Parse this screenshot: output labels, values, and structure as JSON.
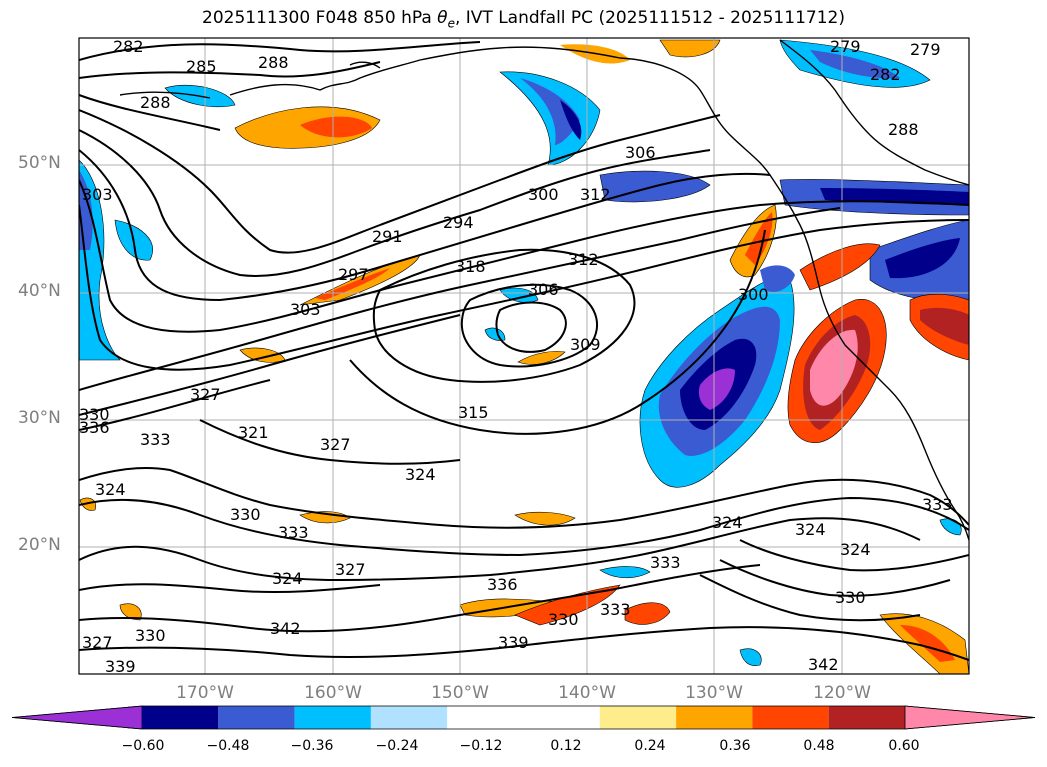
{
  "title": {
    "prefix": "2025111300 F048 850 hPa ",
    "symbol": "θ",
    "subscript": "e",
    "suffix": ", IVT Landfall PC (2025111512 - 2025111712)"
  },
  "lat_ticks": [
    "50°N",
    "40°N",
    "30°N",
    "20°N"
  ],
  "lon_ticks": [
    "170°W",
    "160°W",
    "150°W",
    "140°W",
    "130°W",
    "120°W"
  ],
  "colorbar": {
    "colors": [
      "#9b30d6",
      "#00008b",
      "#3a5bd2",
      "#00bfff",
      "#b0e2ff",
      "#ffffff",
      "#ffffff",
      "#ffec8b",
      "#ffa500",
      "#ff4500",
      "#b22222",
      "#ff88aa"
    ],
    "tick_labels": [
      "−0.60",
      "−0.48",
      "−0.36",
      "−0.24",
      "−0.12",
      "0.12",
      "0.24",
      "0.36",
      "0.48",
      "0.60"
    ]
  },
  "contour_labels": [
    {
      "text": "282"
    },
    {
      "text": "285"
    },
    {
      "text": "288"
    },
    {
      "text": "288"
    },
    {
      "text": "279"
    },
    {
      "text": "279"
    },
    {
      "text": "282"
    },
    {
      "text": "288"
    },
    {
      "text": "306"
    },
    {
      "text": "300"
    },
    {
      "text": "312"
    },
    {
      "text": "294"
    },
    {
      "text": "291"
    },
    {
      "text": "318"
    },
    {
      "text": "312"
    },
    {
      "text": "306"
    },
    {
      "text": "309"
    },
    {
      "text": "300"
    },
    {
      "text": "303"
    },
    {
      "text": "297"
    },
    {
      "text": "303"
    },
    {
      "text": "315"
    },
    {
      "text": "327"
    },
    {
      "text": "321"
    },
    {
      "text": "327"
    },
    {
      "text": "324"
    },
    {
      "text": "330"
    },
    {
      "text": "336"
    },
    {
      "text": "333"
    },
    {
      "text": "324"
    },
    {
      "text": "330"
    },
    {
      "text": "333"
    },
    {
      "text": "324"
    },
    {
      "text": "327"
    },
    {
      "text": "336"
    },
    {
      "text": "333"
    },
    {
      "text": "330"
    },
    {
      "text": "333"
    },
    {
      "text": "342"
    },
    {
      "text": "339"
    },
    {
      "text": "327"
    },
    {
      "text": "330"
    },
    {
      "text": "339"
    },
    {
      "text": "324"
    },
    {
      "text": "324"
    },
    {
      "text": "324"
    },
    {
      "text": "330"
    },
    {
      "text": "342"
    },
    {
      "text": "333"
    }
  ]
}
